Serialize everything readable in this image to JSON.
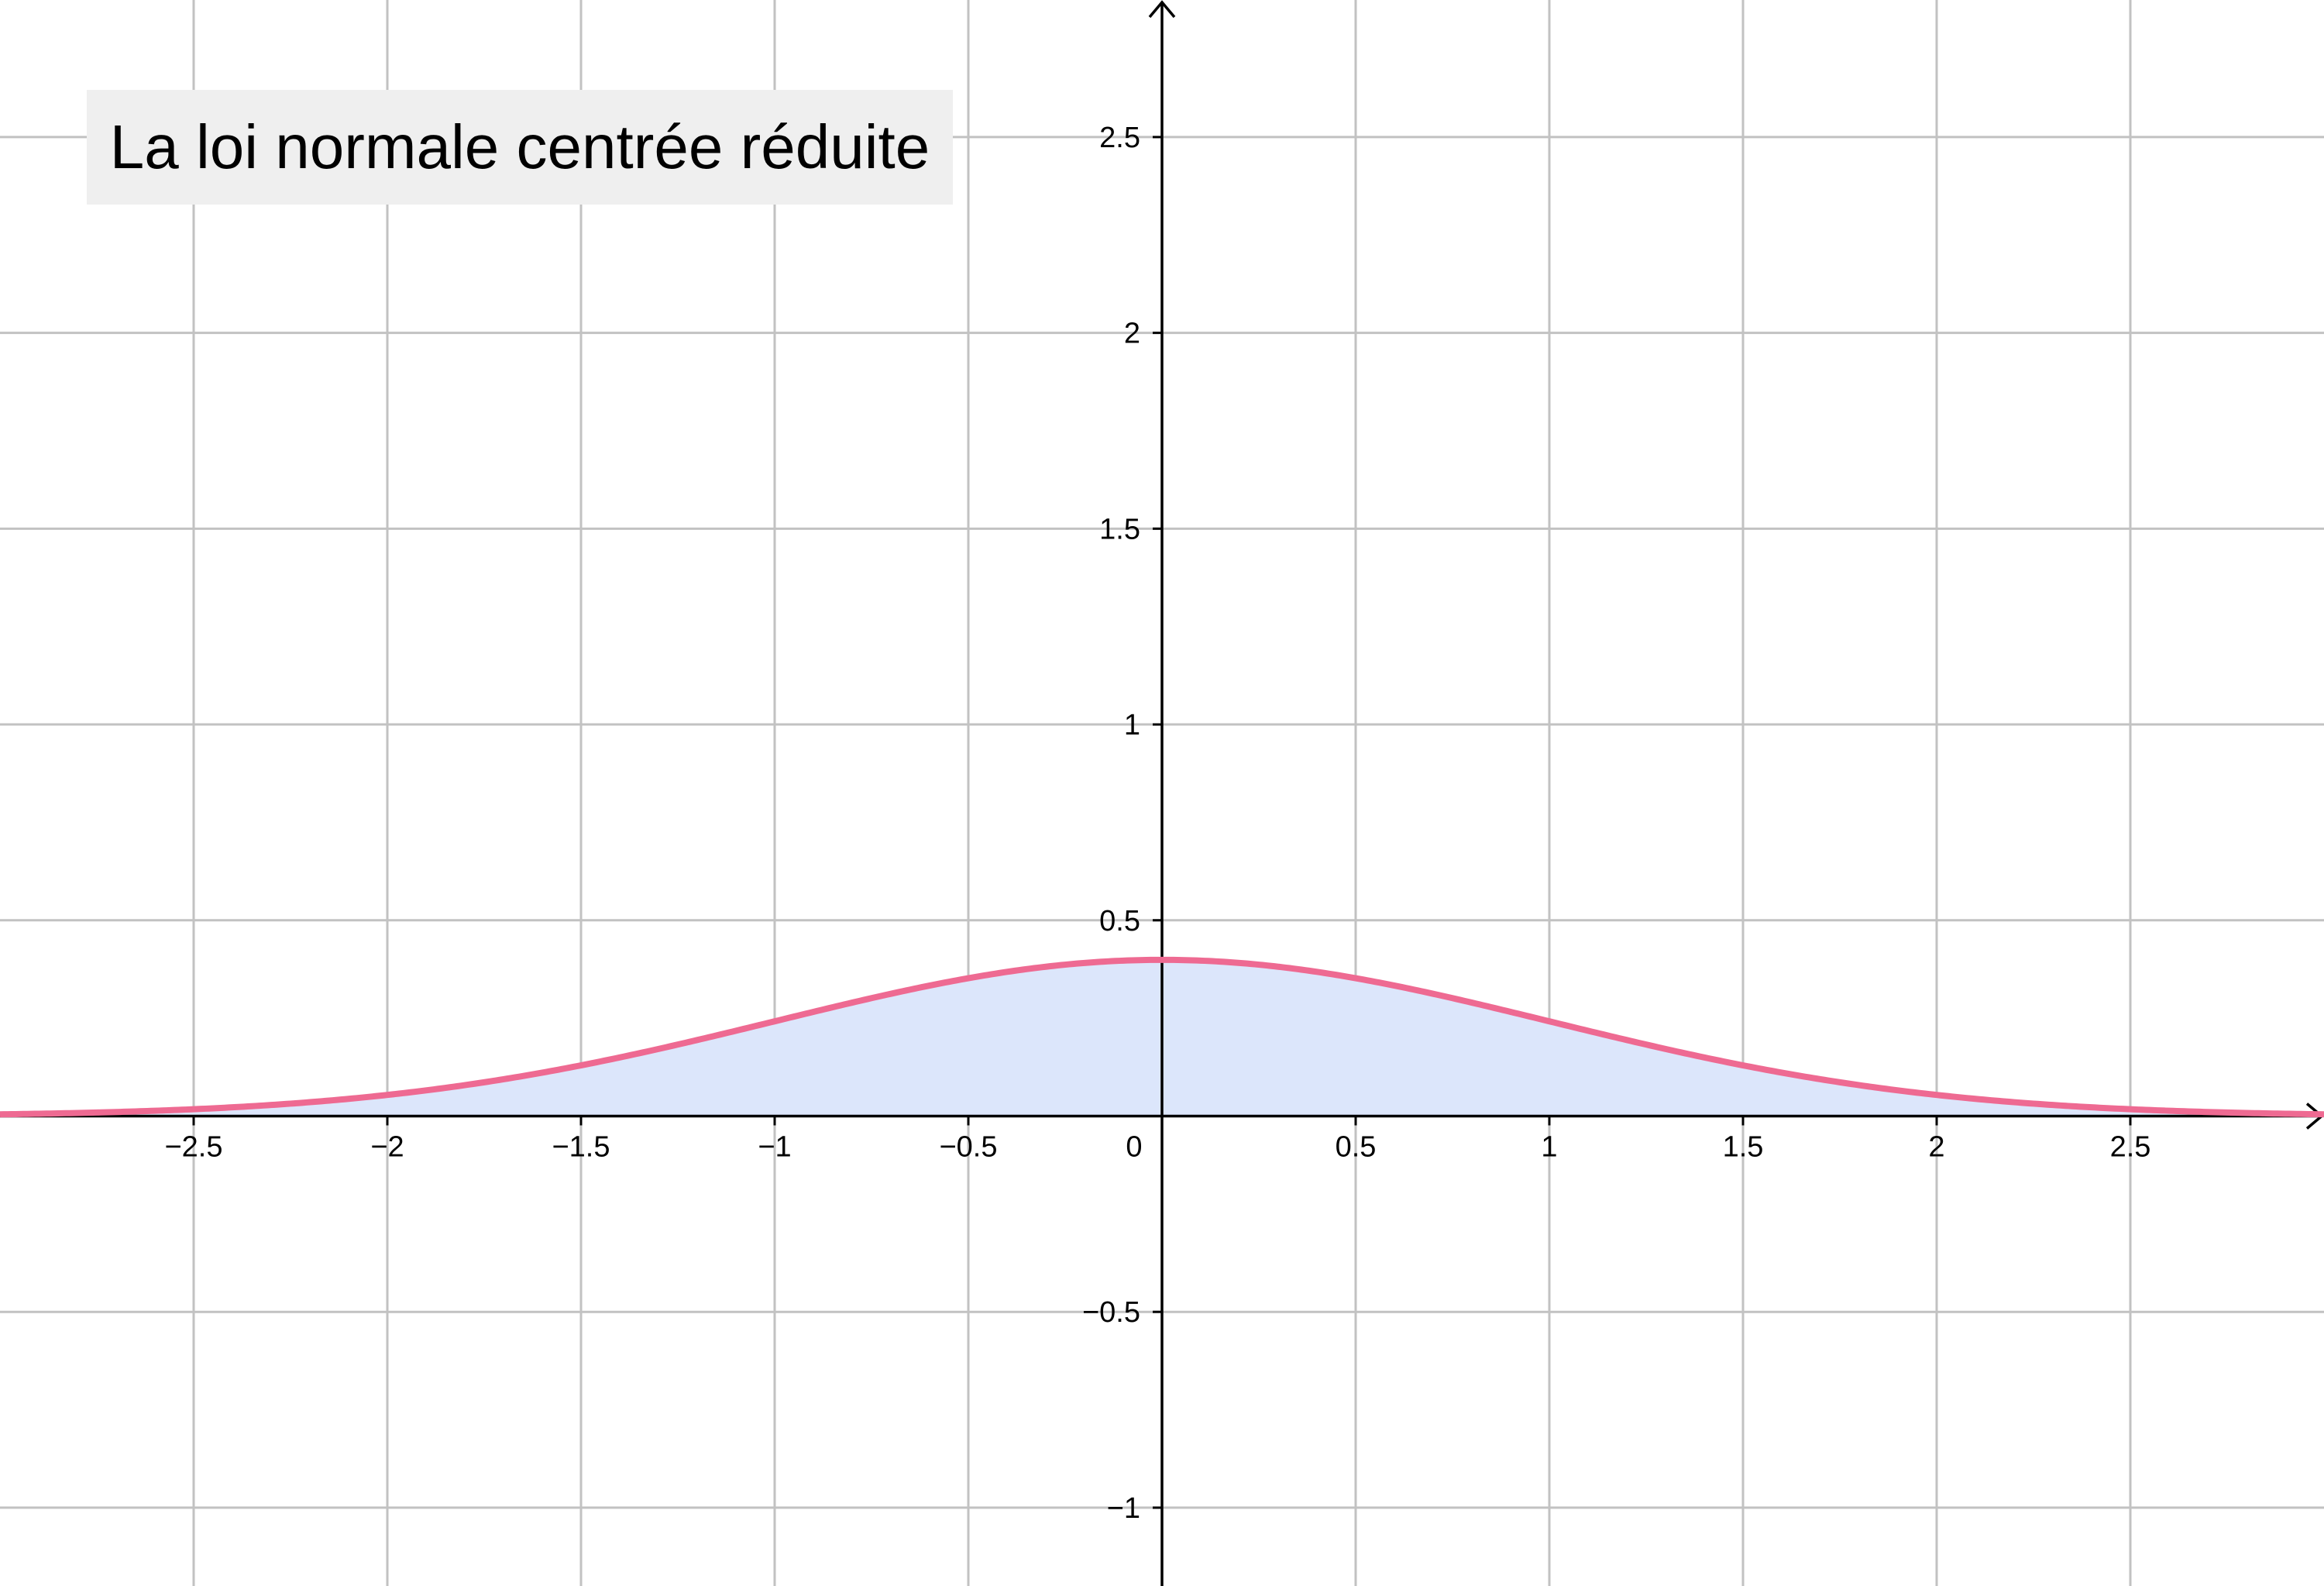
{
  "chart_data": {
    "type": "area",
    "title": "La loi normale centrée réduite",
    "xlim": [
      -3,
      3
    ],
    "ylim": [
      -1.2,
      2.85
    ],
    "grid": true,
    "x_ticks": [
      -2.5,
      -2,
      -1.5,
      -1,
      -0.5,
      0,
      0.5,
      1,
      1.5,
      2,
      2.5
    ],
    "x_tick_labels": [
      "−2.5",
      "−2",
      "−1.5",
      "−1",
      "−0.5",
      "0",
      "0.5",
      "1",
      "1.5",
      "2",
      "2.5"
    ],
    "y_ticks": [
      -1,
      -0.5,
      0.5,
      1,
      1.5,
      2,
      2.5
    ],
    "y_tick_labels": [
      "−1",
      "−0.5",
      "0.5",
      "1",
      "1.5",
      "2",
      "2.5"
    ],
    "series": [
      {
        "x": [
          -3,
          -2.5,
          -2,
          -1.5,
          -1,
          -0.5,
          0,
          0.5,
          1,
          1.5,
          2,
          2.5,
          3
        ],
        "values": [
          0.0044,
          0.0175,
          0.054,
          0.1295,
          0.242,
          0.352,
          0.399,
          0.352,
          0.242,
          0.1295,
          0.054,
          0.0175,
          0.0044
        ]
      }
    ],
    "curve_color": "#ee6a92",
    "fill_color": "#dce6fb",
    "grid_color": "#c2c2c2",
    "axis_color": "#000000"
  }
}
